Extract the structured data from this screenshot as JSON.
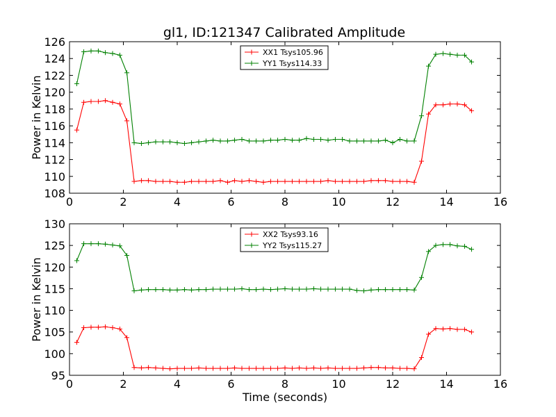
{
  "figure": {
    "title": "gl1, ID:121347 Calibrated Amplitude"
  },
  "chart_data": [
    {
      "type": "line",
      "xlabel": "",
      "ylabel": "Power in Kelvin",
      "xlim": [
        0,
        16
      ],
      "ylim": [
        108,
        126
      ],
      "xticks": [
        0,
        2,
        4,
        6,
        8,
        10,
        12,
        14,
        16
      ],
      "yticks": [
        108,
        110,
        112,
        114,
        116,
        118,
        120,
        122,
        124,
        126
      ],
      "grid": false,
      "legend_position": "top-center",
      "x": [
        0.27,
        0.53,
        0.8,
        1.07,
        1.33,
        1.6,
        1.87,
        2.13,
        2.4,
        2.67,
        2.93,
        3.2,
        3.47,
        3.73,
        4.0,
        4.27,
        4.53,
        4.8,
        5.07,
        5.33,
        5.6,
        5.87,
        6.13,
        6.4,
        6.67,
        6.93,
        7.2,
        7.47,
        7.73,
        8.0,
        8.27,
        8.53,
        8.8,
        9.07,
        9.33,
        9.6,
        9.87,
        10.13,
        10.4,
        10.67,
        10.93,
        11.2,
        11.47,
        11.73,
        12.0,
        12.27,
        12.53,
        12.8,
        13.07,
        13.33,
        13.6,
        13.87,
        14.13,
        14.4,
        14.67,
        14.93
      ],
      "series": [
        {
          "name": "XX1 Tsys105.96",
          "color": "#ff0000",
          "values": [
            115.5,
            118.8,
            118.9,
            118.9,
            119.0,
            118.8,
            118.6,
            116.6,
            109.4,
            109.5,
            109.5,
            109.4,
            109.4,
            109.4,
            109.3,
            109.3,
            109.4,
            109.4,
            109.4,
            109.4,
            109.5,
            109.3,
            109.5,
            109.4,
            109.5,
            109.4,
            109.3,
            109.4,
            109.4,
            109.4,
            109.4,
            109.4,
            109.4,
            109.4,
            109.4,
            109.5,
            109.4,
            109.4,
            109.4,
            109.4,
            109.4,
            109.5,
            109.5,
            109.5,
            109.4,
            109.4,
            109.4,
            109.3,
            111.8,
            117.4,
            118.5,
            118.5,
            118.6,
            118.6,
            118.5,
            117.8
          ]
        },
        {
          "name": "YY1 Tsys114.33",
          "color": "#008000",
          "values": [
            121.0,
            124.8,
            124.9,
            124.9,
            124.7,
            124.6,
            124.4,
            122.3,
            114.0,
            113.9,
            114.0,
            114.1,
            114.1,
            114.1,
            114.0,
            113.9,
            114.0,
            114.1,
            114.2,
            114.3,
            114.2,
            114.2,
            114.3,
            114.4,
            114.2,
            114.2,
            114.2,
            114.3,
            114.3,
            114.4,
            114.3,
            114.3,
            114.5,
            114.4,
            114.4,
            114.3,
            114.4,
            114.4,
            114.2,
            114.2,
            114.2,
            114.2,
            114.2,
            114.3,
            114.0,
            114.4,
            114.2,
            114.2,
            117.2,
            123.1,
            124.5,
            124.6,
            124.5,
            124.4,
            124.4,
            123.6
          ]
        }
      ]
    },
    {
      "type": "line",
      "xlabel": "Time (seconds)",
      "ylabel": "Power in Kelvin",
      "xlim": [
        0,
        16
      ],
      "ylim": [
        95,
        130
      ],
      "xticks": [
        0,
        2,
        4,
        6,
        8,
        10,
        12,
        14,
        16
      ],
      "yticks": [
        95,
        100,
        105,
        110,
        115,
        120,
        125,
        130
      ],
      "grid": false,
      "legend_position": "top-center",
      "x": [
        0.27,
        0.53,
        0.8,
        1.07,
        1.33,
        1.6,
        1.87,
        2.13,
        2.4,
        2.67,
        2.93,
        3.2,
        3.47,
        3.73,
        4.0,
        4.27,
        4.53,
        4.8,
        5.07,
        5.33,
        5.6,
        5.87,
        6.13,
        6.4,
        6.67,
        6.93,
        7.2,
        7.47,
        7.73,
        8.0,
        8.27,
        8.53,
        8.8,
        9.07,
        9.33,
        9.6,
        9.87,
        10.13,
        10.4,
        10.67,
        10.93,
        11.2,
        11.47,
        11.73,
        12.0,
        12.27,
        12.53,
        12.8,
        13.07,
        13.33,
        13.6,
        13.87,
        14.13,
        14.4,
        14.67,
        14.93
      ],
      "series": [
        {
          "name": "XX2 Tsys93.16",
          "color": "#ff0000",
          "values": [
            102.6,
            106.0,
            106.1,
            106.1,
            106.2,
            106.0,
            105.7,
            103.7,
            96.8,
            96.7,
            96.8,
            96.7,
            96.6,
            96.5,
            96.6,
            96.6,
            96.6,
            96.7,
            96.6,
            96.6,
            96.6,
            96.6,
            96.7,
            96.6,
            96.6,
            96.6,
            96.6,
            96.6,
            96.6,
            96.7,
            96.6,
            96.7,
            96.6,
            96.7,
            96.6,
            96.7,
            96.6,
            96.6,
            96.6,
            96.6,
            96.7,
            96.8,
            96.8,
            96.7,
            96.7,
            96.6,
            96.6,
            96.5,
            99.1,
            104.5,
            105.8,
            105.7,
            105.8,
            105.6,
            105.6,
            105.0
          ]
        },
        {
          "name": "YY2 Tsys115.27",
          "color": "#008000",
          "values": [
            121.5,
            125.4,
            125.4,
            125.4,
            125.3,
            125.1,
            124.9,
            122.7,
            114.5,
            114.7,
            114.8,
            114.8,
            114.8,
            114.7,
            114.7,
            114.8,
            114.7,
            114.8,
            114.8,
            114.9,
            114.9,
            114.9,
            114.9,
            115.0,
            114.8,
            114.8,
            114.9,
            114.8,
            114.9,
            115.0,
            114.9,
            114.9,
            114.9,
            115.0,
            114.9,
            114.9,
            114.9,
            114.9,
            114.9,
            114.6,
            114.5,
            114.7,
            114.8,
            114.8,
            114.8,
            114.8,
            114.8,
            114.7,
            117.6,
            123.6,
            125.0,
            125.2,
            125.2,
            124.9,
            124.8,
            124.1
          ]
        }
      ]
    }
  ]
}
